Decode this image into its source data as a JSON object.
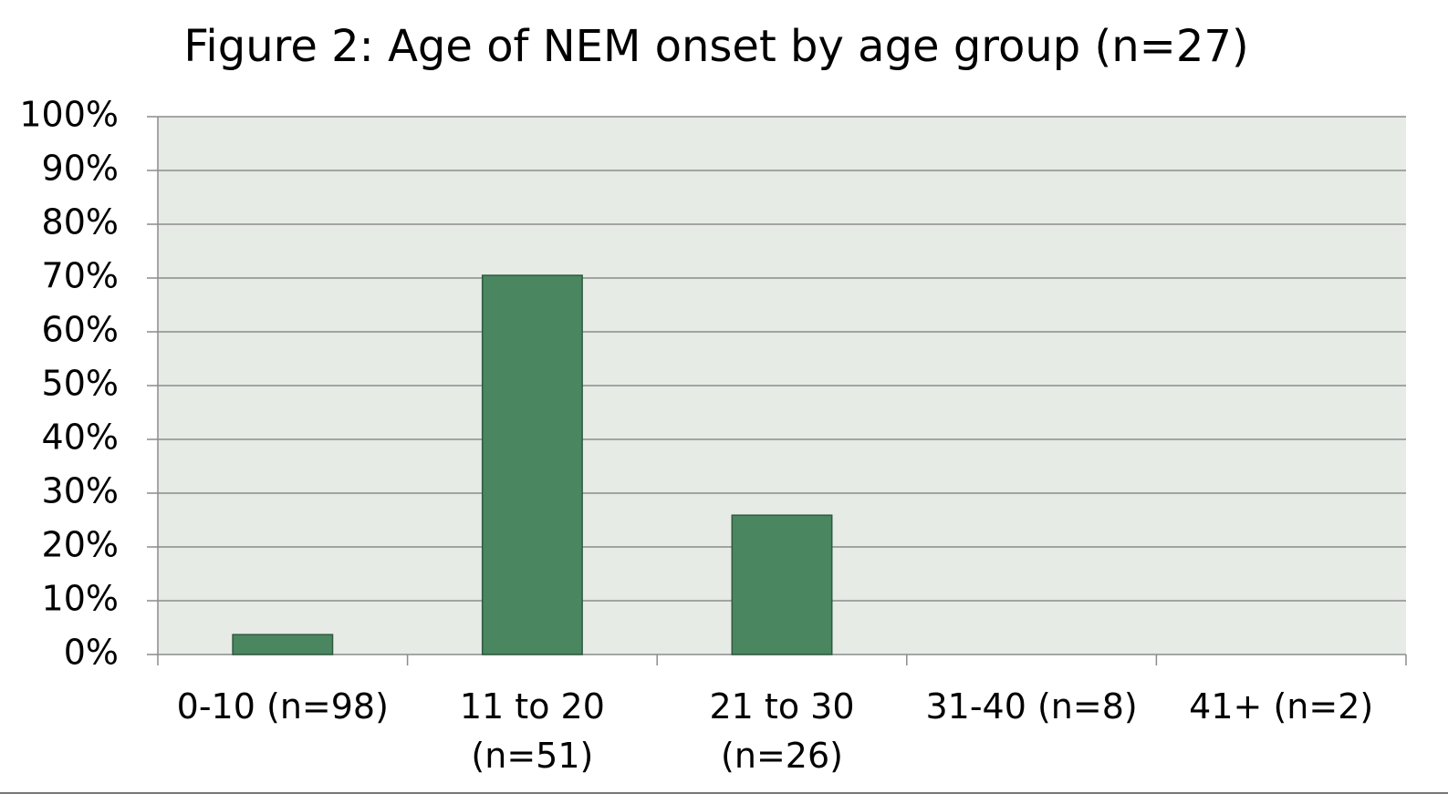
{
  "chart_data": {
    "type": "bar",
    "title": "Figure 2: Age of NEM onset by age group (n=27)",
    "categories": [
      "0-10 (n=98)",
      "11 to 20 (n=51)",
      "21 to 30 (n=26)",
      "31-40 (n=8)",
      "41+ (n=2)"
    ],
    "values": [
      3.7,
      70.5,
      25.9,
      0,
      0
    ],
    "color": "#4a8660",
    "ylim": [
      0,
      100
    ],
    "yticks": [
      {
        "value": 0,
        "label": "0%"
      },
      {
        "value": 10,
        "label": "10%"
      },
      {
        "value": 20,
        "label": "20%"
      },
      {
        "value": 30,
        "label": "30%"
      },
      {
        "value": 40,
        "label": "40%"
      },
      {
        "value": 50,
        "label": "50%"
      },
      {
        "value": 60,
        "label": "60%"
      },
      {
        "value": 70,
        "label": "70%"
      },
      {
        "value": 80,
        "label": "80%"
      },
      {
        "value": 90,
        "label": "90%"
      },
      {
        "value": 100,
        "label": "100%"
      }
    ],
    "grid": true
  }
}
